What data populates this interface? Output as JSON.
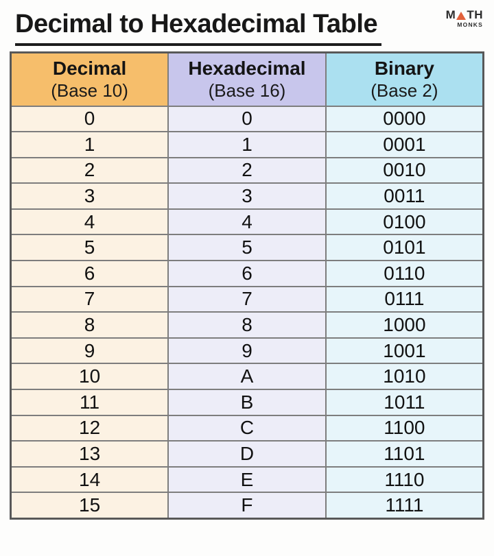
{
  "page": {
    "title": "Decimal to Hexadecimal Table",
    "background_color": "#fdfdfc"
  },
  "logo": {
    "name": "math-monks-logo",
    "word_top_left": "M",
    "word_top_right": "TH",
    "word_bottom": "MONKS",
    "triangle_color": "#e2613b",
    "text_color": "#2c2c2c"
  },
  "table": {
    "border_color": "#7d7d7d",
    "outer_border_color": "#585858",
    "columns": [
      {
        "id": "decimal",
        "label": "Decimal",
        "sublabel": "(Base 10)",
        "header_color": "#f6be6b",
        "body_color": "#fcf2e3"
      },
      {
        "id": "hexadecimal",
        "label": "Hexadecimal",
        "sublabel": "(Base 16)",
        "header_color": "#c8c6ec",
        "body_color": "#ededf8"
      },
      {
        "id": "binary",
        "label": "Binary",
        "sublabel": "(Base 2)",
        "header_color": "#abe0f0",
        "body_color": "#e7f5fa"
      }
    ],
    "rows": [
      {
        "decimal": "0",
        "hexadecimal": "0",
        "binary": "0000"
      },
      {
        "decimal": "1",
        "hexadecimal": "1",
        "binary": "0001"
      },
      {
        "decimal": "2",
        "hexadecimal": "2",
        "binary": "0010"
      },
      {
        "decimal": "3",
        "hexadecimal": "3",
        "binary": "0011"
      },
      {
        "decimal": "4",
        "hexadecimal": "4",
        "binary": "0100"
      },
      {
        "decimal": "5",
        "hexadecimal": "5",
        "binary": "0101"
      },
      {
        "decimal": "6",
        "hexadecimal": "6",
        "binary": "0110"
      },
      {
        "decimal": "7",
        "hexadecimal": "7",
        "binary": "0111"
      },
      {
        "decimal": "8",
        "hexadecimal": "8",
        "binary": "1000"
      },
      {
        "decimal": "9",
        "hexadecimal": "9",
        "binary": "1001"
      },
      {
        "decimal": "10",
        "hexadecimal": "A",
        "binary": "1010"
      },
      {
        "decimal": "11",
        "hexadecimal": "B",
        "binary": "1011"
      },
      {
        "decimal": "12",
        "hexadecimal": "C",
        "binary": "1100"
      },
      {
        "decimal": "13",
        "hexadecimal": "D",
        "binary": "1101"
      },
      {
        "decimal": "14",
        "hexadecimal": "E",
        "binary": "1110"
      },
      {
        "decimal": "15",
        "hexadecimal": "F",
        "binary": "1111"
      }
    ]
  }
}
